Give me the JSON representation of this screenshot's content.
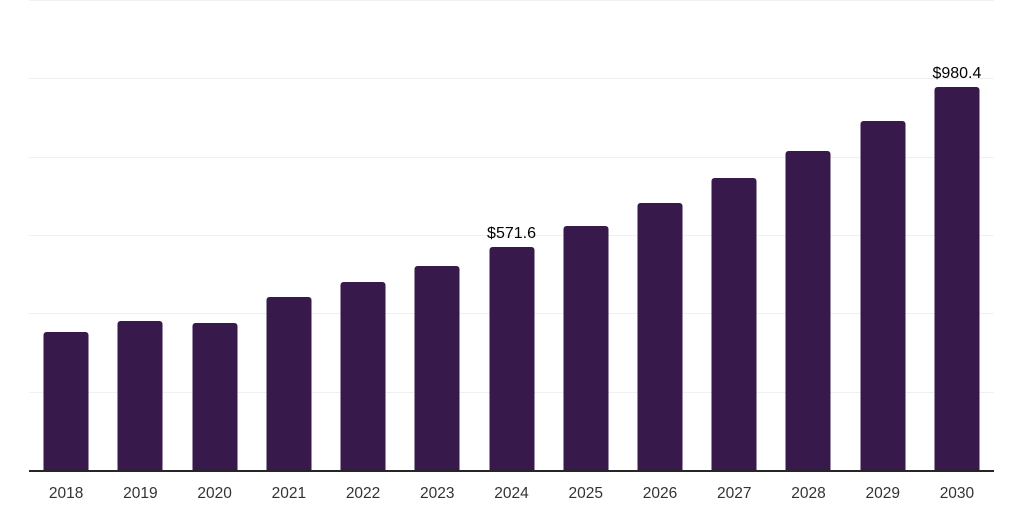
{
  "chart_data": {
    "type": "bar",
    "categories": [
      "2018",
      "2019",
      "2020",
      "2021",
      "2022",
      "2023",
      "2024",
      "2025",
      "2026",
      "2027",
      "2028",
      "2029",
      "2030"
    ],
    "values": [
      355,
      384,
      377,
      444,
      482,
      523,
      571.6,
      625,
      684,
      747,
      818,
      894,
      980.4
    ],
    "annotations": {
      "2024": "$571.6",
      "2030": "$980.4"
    },
    "ylim": [
      0,
      1200
    ],
    "gridline_values": [
      200,
      400,
      600,
      800,
      1000,
      1200
    ],
    "grid": "horizontal",
    "legend": "none",
    "bar_color": "#37194c"
  },
  "colors": {
    "background": "#ffffff",
    "bar": "#37194c",
    "gridline": "#f0f0f0",
    "axis_line": "#262626",
    "tick_label": "#333333",
    "value_label": "#000000"
  }
}
